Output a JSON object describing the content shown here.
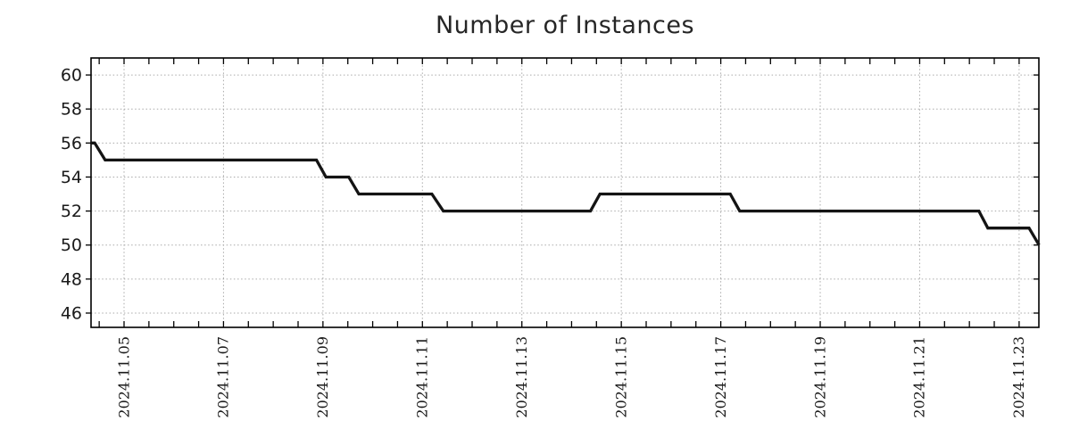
{
  "figure": {
    "background": "#ffffff"
  },
  "chart_data": {
    "type": "line",
    "title": "Number of Instances",
    "xlabel": "",
    "ylabel": "",
    "legend": "none",
    "grid": "dotted gridlines at labeled ticks, both axes",
    "x_unit": "date, decimal day of November 2024",
    "xlim": [
      4.336,
      23.397
    ],
    "ylim": [
      45.16,
      61.0
    ],
    "y_ticks": [
      46,
      48,
      50,
      52,
      54,
      56,
      58,
      60
    ],
    "x_ticks": [
      {
        "day": 5,
        "label": "2024.11.05"
      },
      {
        "day": 7,
        "label": "2024.11.07"
      },
      {
        "day": 9,
        "label": "2024.11.09"
      },
      {
        "day": 11,
        "label": "2024.11.11"
      },
      {
        "day": 13,
        "label": "2024.11.13"
      },
      {
        "day": 15,
        "label": "2024.11.15"
      },
      {
        "day": 17,
        "label": "2024.11.17"
      },
      {
        "day": 19,
        "label": "2024.11.19"
      },
      {
        "day": 21,
        "label": "2024.11.21"
      },
      {
        "day": 23,
        "label": "2024.11.23"
      }
    ],
    "x_minor_tick_step_days": 0.5,
    "series": [
      {
        "name": "Number of Instances",
        "color": "#141414",
        "line_width": 3.3,
        "points": [
          [
            4.34,
            56
          ],
          [
            4.41,
            56
          ],
          [
            4.62,
            55
          ],
          [
            8.87,
            55
          ],
          [
            9.06,
            54
          ],
          [
            9.52,
            54
          ],
          [
            9.72,
            53
          ],
          [
            11.19,
            53
          ],
          [
            11.42,
            52
          ],
          [
            14.38,
            52
          ],
          [
            14.57,
            53
          ],
          [
            17.19,
            53
          ],
          [
            17.38,
            52
          ],
          [
            22.19,
            52
          ],
          [
            22.37,
            51
          ],
          [
            23.2,
            51
          ],
          [
            23.4,
            50
          ]
        ]
      }
    ]
  },
  "colors": {
    "line": "#141414",
    "grid": "#aaaaaa",
    "axis": "#000000",
    "tick": "#000000",
    "text": "#1a1a1a",
    "background": "#ffffff"
  }
}
